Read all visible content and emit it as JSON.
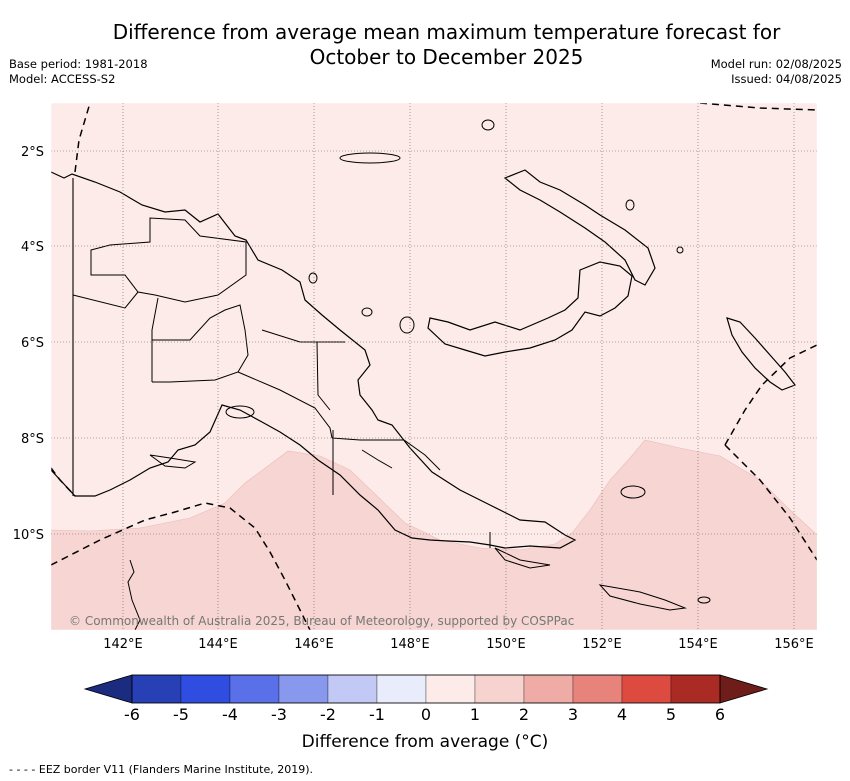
{
  "title_line1": "Difference from average mean maximum temperature forecast for",
  "title_line2": "October to December 2025",
  "base_period": "Base period: 1981-2018",
  "model": "Model: ACCESS-S2",
  "model_run": "Model run: 02/08/2025",
  "issued": "Issued: 04/08/2025",
  "credit": "© Commonwealth of Australia 2025, Bureau of Meteorology, supported by COSPPac",
  "lon_ticks": [
    "142°E",
    "144°E",
    "146°E",
    "148°E",
    "150°E",
    "152°E",
    "154°E",
    "156°E"
  ],
  "lat_ticks": [
    "2°S",
    "4°S",
    "6°S",
    "8°S",
    "10°S"
  ],
  "colorbar": {
    "labels": [
      "-6",
      "-5",
      "-4",
      "-3",
      "-2",
      "-1",
      "0",
      "1",
      "2",
      "3",
      "4",
      "5",
      "6"
    ],
    "colors": [
      "#1b2c80",
      "#2840b5",
      "#2f4de0",
      "#5a70e8",
      "#8898ec",
      "#c2c9f4",
      "#e9ecfa",
      "#fcebe8",
      "#f6d3cf",
      "#efaca6",
      "#e7837a",
      "#dc4a40",
      "#aa2a24",
      "#6e1d1a"
    ],
    "title": "Difference from average (°C)"
  },
  "legend_footer": "- -  - -  EEZ border V11 (Flanders Marine Institute, 2019).",
  "map_colors": {
    "anomaly_0_1": "#fcebe9",
    "anomaly_1_2": "#f6d5d2",
    "coast": "#000000"
  }
}
